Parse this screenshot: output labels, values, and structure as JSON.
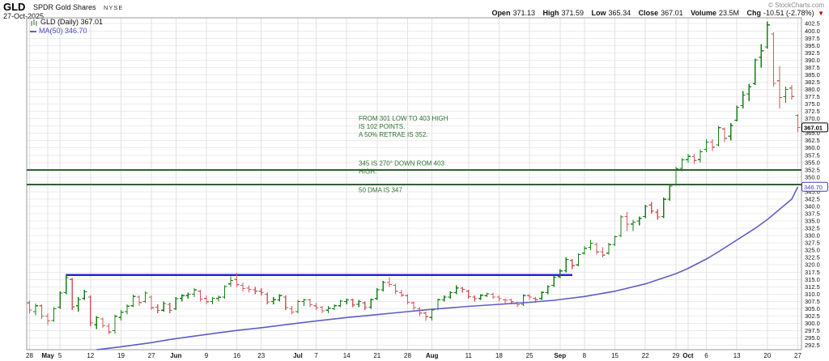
{
  "header": {
    "symbol": "GLD",
    "name": "SPDR Gold Shares",
    "exchange": "NYSE",
    "date": "27-Oct-2025",
    "copyright": "© StockCharts.com",
    "quote": {
      "open_label": "Open",
      "open_value": "371.13",
      "high_label": "High",
      "high_value": "371.59",
      "low_label": "Low",
      "low_value": "365.34",
      "close_label": "Close",
      "close_value": "367.01",
      "volume_label": "Volume",
      "volume_value": "23.5M",
      "chg_label": "Chg",
      "chg_value": "-10.51 (-2.78%)",
      "arrow": "▼"
    }
  },
  "legend": {
    "series1": "GLD (Daily) 367.01",
    "series2": "MA(50) 346.70"
  },
  "colors": {
    "up": "#178017",
    "down": "#d25862",
    "ma": "#5e5ec7",
    "trendline": "#2424d9",
    "hline": "#355e35",
    "annotation": "#2f7030",
    "grid_h": "#ececec",
    "grid_v": "#e2e2e2",
    "border": "#9a9a9a",
    "axis_text": "#111111",
    "badge_close": "#000000",
    "badge_ma": "#3d3dbb"
  },
  "chart_data": {
    "type": "candlestick-ohlc",
    "title": "GLD SPDR Gold Shares (NYSE) Daily with MA(50)",
    "ylim": [
      291.0,
      404.5
    ],
    "y_ticks": {
      "min": 292.5,
      "max": 402.5,
      "step": 2.5
    },
    "legend_position": "top-left",
    "grid": true,
    "dates": [
      "Apr 28",
      "Apr 29",
      "Apr 30",
      "May 1",
      "May 2",
      "May 5",
      "May 6",
      "May 7",
      "May 8",
      "May 9",
      "May 12",
      "May 13",
      "May 14",
      "May 15",
      "May 16",
      "May 19",
      "May 20",
      "May 21",
      "May 22",
      "May 23",
      "May 27",
      "May 28",
      "May 29",
      "May 30",
      "Jun 2",
      "Jun 3",
      "Jun 4",
      "Jun 5",
      "Jun 6",
      "Jun 9",
      "Jun 10",
      "Jun 11",
      "Jun 12",
      "Jun 13",
      "Jun 16",
      "Jun 17",
      "Jun 18",
      "Jun 20",
      "Jun 23",
      "Jun 24",
      "Jun 25",
      "Jun 26",
      "Jun 27",
      "Jun 30",
      "Jul 1",
      "Jul 2",
      "Jul 3",
      "Jul 7",
      "Jul 8",
      "Jul 9",
      "Jul 10",
      "Jul 11",
      "Jul 14",
      "Jul 15",
      "Jul 16",
      "Jul 17",
      "Jul 18",
      "Jul 21",
      "Jul 22",
      "Jul 23",
      "Jul 24",
      "Jul 25",
      "Jul 28",
      "Jul 29",
      "Jul 30",
      "Jul 31",
      "Aug 1",
      "Aug 4",
      "Aug 5",
      "Aug 6",
      "Aug 7",
      "Aug 8",
      "Aug 11",
      "Aug 12",
      "Aug 13",
      "Aug 14",
      "Aug 15",
      "Aug 18",
      "Aug 19",
      "Aug 20",
      "Aug 21",
      "Aug 22",
      "Aug 25",
      "Aug 26",
      "Aug 27",
      "Aug 28",
      "Aug 29",
      "Sep 2",
      "Sep 3",
      "Sep 4",
      "Sep 5",
      "Sep 8",
      "Sep 9",
      "Sep 10",
      "Sep 11",
      "Sep 12",
      "Sep 15",
      "Sep 16",
      "Sep 17",
      "Sep 18",
      "Sep 19",
      "Sep 22",
      "Sep 23",
      "Sep 24",
      "Sep 25",
      "Sep 26",
      "Sep 29",
      "Sep 30",
      "Oct 1",
      "Oct 2",
      "Oct 3",
      "Oct 6",
      "Oct 7",
      "Oct 8",
      "Oct 9",
      "Oct 10",
      "Oct 13",
      "Oct 14",
      "Oct 15",
      "Oct 16",
      "Oct 17",
      "Oct 20",
      "Oct 21",
      "Oct 22",
      "Oct 23",
      "Oct 24",
      "Oct 27"
    ],
    "ohlc": [
      [
        307.0,
        307.8,
        303.5,
        304.6
      ],
      [
        304.0,
        306.8,
        302.8,
        306.0
      ],
      [
        306.0,
        306.5,
        301.5,
        302.5
      ],
      [
        302.5,
        303.5,
        299.5,
        300.8
      ],
      [
        301.0,
        305.5,
        300.5,
        305.0
      ],
      [
        305.5,
        311.0,
        305.0,
        310.4
      ],
      [
        310.5,
        316.6,
        310.0,
        315.6
      ],
      [
        315.0,
        315.5,
        304.5,
        305.6
      ],
      [
        306.0,
        309.0,
        304.0,
        308.2
      ],
      [
        308.5,
        311.5,
        308.0,
        310.8
      ],
      [
        309.0,
        309.5,
        299.0,
        300.1
      ],
      [
        299.5,
        302.5,
        298.0,
        301.9
      ],
      [
        301.5,
        302.0,
        298.5,
        299.2
      ],
      [
        299.0,
        300.0,
        296.3,
        297.0
      ],
      [
        297.5,
        303.0,
        296.5,
        302.4
      ],
      [
        302.0,
        304.5,
        301.0,
        303.8
      ],
      [
        304.0,
        306.5,
        303.0,
        305.9
      ],
      [
        306.0,
        309.8,
        305.5,
        309.2
      ],
      [
        309.0,
        309.5,
        306.0,
        307.1
      ],
      [
        307.5,
        311.0,
        307.0,
        310.4
      ],
      [
        309.0,
        309.5,
        304.5,
        305.3
      ],
      [
        305.5,
        306.5,
        303.5,
        304.4
      ],
      [
        304.5,
        307.5,
        304.0,
        306.8
      ],
      [
        306.5,
        307.0,
        303.5,
        304.4
      ],
      [
        305.0,
        309.0,
        304.5,
        308.4
      ],
      [
        308.5,
        310.0,
        307.5,
        309.5
      ],
      [
        309.5,
        310.5,
        308.5,
        310.0
      ],
      [
        310.0,
        312.0,
        309.0,
        311.4
      ],
      [
        311.0,
        311.5,
        307.5,
        308.3
      ],
      [
        308.5,
        309.5,
        306.5,
        307.4
      ],
      [
        307.5,
        309.0,
        306.5,
        308.6
      ],
      [
        308.5,
        309.5,
        307.5,
        308.9
      ],
      [
        309.0,
        313.0,
        308.5,
        312.6
      ],
      [
        313.5,
        316.0,
        312.5,
        314.7
      ],
      [
        315.0,
        317.3,
        312.5,
        313.2
      ],
      [
        313.0,
        314.0,
        311.0,
        311.9
      ],
      [
        312.0,
        313.0,
        310.5,
        311.6
      ],
      [
        311.5,
        312.5,
        310.0,
        311.0
      ],
      [
        311.0,
        312.0,
        309.5,
        310.5
      ],
      [
        310.0,
        310.5,
        306.5,
        307.3
      ],
      [
        307.5,
        309.0,
        306.5,
        308.1
      ],
      [
        308.0,
        310.0,
        307.5,
        309.5
      ],
      [
        309.0,
        309.5,
        304.5,
        305.4
      ],
      [
        305.0,
        306.0,
        303.0,
        303.9
      ],
      [
        304.0,
        308.0,
        303.5,
        307.5
      ],
      [
        307.5,
        308.5,
        306.0,
        308.0
      ],
      [
        308.0,
        308.5,
        305.5,
        306.4
      ],
      [
        306.0,
        307.0,
        304.5,
        305.4
      ],
      [
        305.5,
        306.0,
        303.5,
        304.3
      ],
      [
        304.5,
        306.0,
        303.5,
        305.2
      ],
      [
        305.0,
        306.5,
        304.5,
        306.0
      ],
      [
        306.0,
        308.0,
        305.5,
        307.6
      ],
      [
        307.5,
        308.5,
        306.5,
        308.0
      ],
      [
        308.0,
        308.5,
        305.5,
        306.3
      ],
      [
        306.5,
        308.0,
        305.5,
        307.5
      ],
      [
        307.0,
        307.5,
        304.5,
        305.4
      ],
      [
        305.5,
        308.5,
        305.0,
        308.1
      ],
      [
        308.5,
        312.0,
        308.0,
        311.5
      ],
      [
        311.5,
        314.5,
        311.0,
        314.0
      ],
      [
        314.0,
        315.8,
        312.5,
        313.3
      ],
      [
        313.0,
        313.5,
        310.0,
        311.0
      ],
      [
        310.5,
        311.5,
        309.0,
        309.6
      ],
      [
        309.5,
        310.0,
        306.5,
        307.2
      ],
      [
        307.0,
        307.5,
        304.5,
        305.4
      ],
      [
        305.0,
        305.5,
        302.5,
        303.5
      ],
      [
        303.5,
        304.0,
        300.8,
        302.3
      ],
      [
        302.0,
        305.0,
        301.0,
        304.6
      ],
      [
        305.0,
        308.5,
        304.5,
        308.1
      ],
      [
        308.0,
        309.5,
        307.5,
        309.0
      ],
      [
        309.0,
        311.0,
        308.5,
        310.5
      ],
      [
        310.5,
        313.0,
        310.0,
        312.1
      ],
      [
        312.0,
        312.5,
        310.5,
        311.6
      ],
      [
        311.0,
        311.5,
        308.5,
        309.1
      ],
      [
        309.0,
        309.5,
        307.5,
        308.4
      ],
      [
        308.5,
        310.0,
        308.0,
        309.6
      ],
      [
        309.5,
        310.5,
        309.0,
        310.1
      ],
      [
        310.0,
        310.5,
        308.5,
        309.0
      ],
      [
        309.0,
        309.5,
        307.5,
        308.4
      ],
      [
        308.0,
        308.5,
        306.5,
        307.9
      ],
      [
        308.0,
        308.5,
        306.5,
        307.4
      ],
      [
        307.0,
        307.5,
        305.5,
        306.4
      ],
      [
        306.5,
        310.0,
        306.0,
        309.5
      ],
      [
        309.5,
        310.0,
        308.0,
        309.0
      ],
      [
        308.5,
        309.0,
        307.0,
        308.1
      ],
      [
        308.5,
        311.0,
        308.0,
        310.6
      ],
      [
        310.5,
        313.0,
        310.0,
        312.6
      ],
      [
        313.0,
        316.3,
        312.5,
        315.8
      ],
      [
        316.0,
        318.5,
        315.5,
        317.9
      ],
      [
        318.0,
        322.5,
        317.5,
        321.9
      ],
      [
        321.5,
        322.0,
        318.5,
        319.7
      ],
      [
        320.0,
        324.0,
        319.5,
        323.5
      ],
      [
        324.0,
        326.5,
        323.5,
        325.7
      ],
      [
        326.0,
        328.5,
        325.0,
        327.4
      ],
      [
        327.0,
        327.5,
        323.5,
        324.4
      ],
      [
        324.5,
        326.0,
        322.5,
        323.3
      ],
      [
        324.0,
        327.5,
        323.5,
        326.9
      ],
      [
        327.0,
        330.0,
        326.5,
        329.6
      ],
      [
        330.0,
        337.0,
        329.5,
        336.4
      ],
      [
        336.5,
        338.0,
        331.5,
        333.9
      ],
      [
        334.0,
        335.5,
        331.5,
        334.6
      ],
      [
        335.0,
        336.5,
        333.5,
        335.9
      ],
      [
        336.5,
        340.5,
        336.0,
        340.0
      ],
      [
        340.5,
        341.5,
        337.5,
        338.4
      ],
      [
        338.0,
        339.0,
        335.5,
        336.4
      ],
      [
        336.5,
        343.0,
        336.0,
        342.4
      ],
      [
        342.5,
        347.5,
        342.0,
        346.9
      ],
      [
        347.5,
        353.5,
        347.0,
        352.9
      ],
      [
        353.0,
        356.5,
        352.0,
        355.9
      ],
      [
        356.0,
        358.0,
        355.0,
        357.1
      ],
      [
        357.0,
        358.0,
        354.5,
        355.7
      ],
      [
        356.0,
        359.5,
        355.0,
        358.7
      ],
      [
        359.5,
        363.0,
        358.5,
        362.0
      ],
      [
        362.0,
        363.0,
        359.0,
        360.3
      ],
      [
        361.0,
        367.5,
        360.5,
        366.9
      ],
      [
        366.5,
        367.0,
        362.0,
        363.3
      ],
      [
        364.0,
        368.5,
        362.5,
        367.6
      ],
      [
        369.5,
        374.5,
        369.0,
        373.9
      ],
      [
        374.5,
        379.5,
        373.5,
        378.1
      ],
      [
        378.5,
        382.0,
        376.0,
        380.9
      ],
      [
        382.0,
        390.5,
        381.5,
        390.1
      ],
      [
        391.0,
        395.5,
        387.5,
        393.2
      ],
      [
        394.5,
        403.3,
        394.0,
        402.1
      ],
      [
        399.0,
        399.5,
        381.0,
        382.1
      ],
      [
        383.0,
        388.0,
        373.5,
        377.2
      ],
      [
        377.5,
        381.0,
        375.5,
        380.0
      ],
      [
        380.5,
        381.5,
        376.5,
        377.6
      ],
      [
        371.13,
        371.59,
        365.34,
        367.01
      ]
    ],
    "ma50_anchors": [
      [
        11,
        291.0
      ],
      [
        15,
        292.0
      ],
      [
        20,
        293.4
      ],
      [
        23,
        294.5
      ],
      [
        29,
        296.2
      ],
      [
        34,
        297.6
      ],
      [
        38,
        298.5
      ],
      [
        43,
        299.8
      ],
      [
        47,
        300.8
      ],
      [
        52,
        302.0
      ],
      [
        57,
        303.0
      ],
      [
        62,
        304.0
      ],
      [
        66,
        304.8
      ],
      [
        72,
        305.8
      ],
      [
        77,
        306.5
      ],
      [
        82,
        307.2
      ],
      [
        86,
        307.9
      ],
      [
        91,
        309.2
      ],
      [
        96,
        311.0
      ],
      [
        101,
        313.5
      ],
      [
        106,
        317.0
      ],
      [
        108,
        318.8
      ],
      [
        111,
        322.0
      ],
      [
        113,
        324.5
      ],
      [
        116,
        328.5
      ],
      [
        119,
        332.5
      ],
      [
        121,
        335.5
      ],
      [
        123,
        339.0
      ],
      [
        125,
        342.5
      ],
      [
        126,
        346.7
      ]
    ],
    "x_ticks": [
      [
        0,
        "28",
        0
      ],
      [
        3,
        "May",
        1
      ],
      [
        5,
        "5",
        0
      ],
      [
        10,
        "12",
        0
      ],
      [
        15,
        "19",
        0
      ],
      [
        20,
        "27",
        0
      ],
      [
        24,
        "Jun",
        1
      ],
      [
        29,
        "9",
        0
      ],
      [
        34,
        "16",
        0
      ],
      [
        38,
        "23",
        0
      ],
      [
        44,
        "Jul",
        1
      ],
      [
        47,
        "7",
        0
      ],
      [
        52,
        "14",
        0
      ],
      [
        57,
        "21",
        0
      ],
      [
        62,
        "28",
        0
      ],
      [
        66,
        "Aug",
        1
      ],
      [
        72,
        "11",
        0
      ],
      [
        77,
        "18",
        0
      ],
      [
        82,
        "25",
        0
      ],
      [
        87,
        "Sep",
        1
      ],
      [
        91,
        "8",
        0
      ],
      [
        96,
        "15",
        0
      ],
      [
        101,
        "22",
        0
      ],
      [
        106,
        "29",
        0
      ],
      [
        108,
        "Oct",
        1
      ],
      [
        111,
        "6",
        0
      ],
      [
        116,
        "13",
        0
      ],
      [
        121,
        "20",
        0
      ],
      [
        126,
        "27",
        0
      ]
    ],
    "overlays": {
      "trendline": {
        "price": 316.5,
        "from": 6,
        "to": 89
      },
      "hlines": [
        {
          "price": 352.5
        },
        {
          "price": 347.5
        }
      ],
      "close_badge": {
        "label": "367.01",
        "price": 367.01
      },
      "ma_badge": {
        "label": "346.70",
        "price": 346.7
      }
    },
    "annotations": [
      {
        "x": 443,
        "price": 369.3,
        "lines": [
          "FROM 301 LOW TO 403 HIGH",
          "IS 102 POINTS.",
          "A 50% RETRAE IS 352."
        ]
      },
      {
        "x": 443,
        "price": 354.0,
        "lines": [
          "345 IS 270° DOWN ROM 403",
          "HIGH."
        ]
      },
      {
        "x": 443,
        "price": 344.9,
        "lines": [
          "50 DMA IS 347"
        ]
      }
    ]
  }
}
